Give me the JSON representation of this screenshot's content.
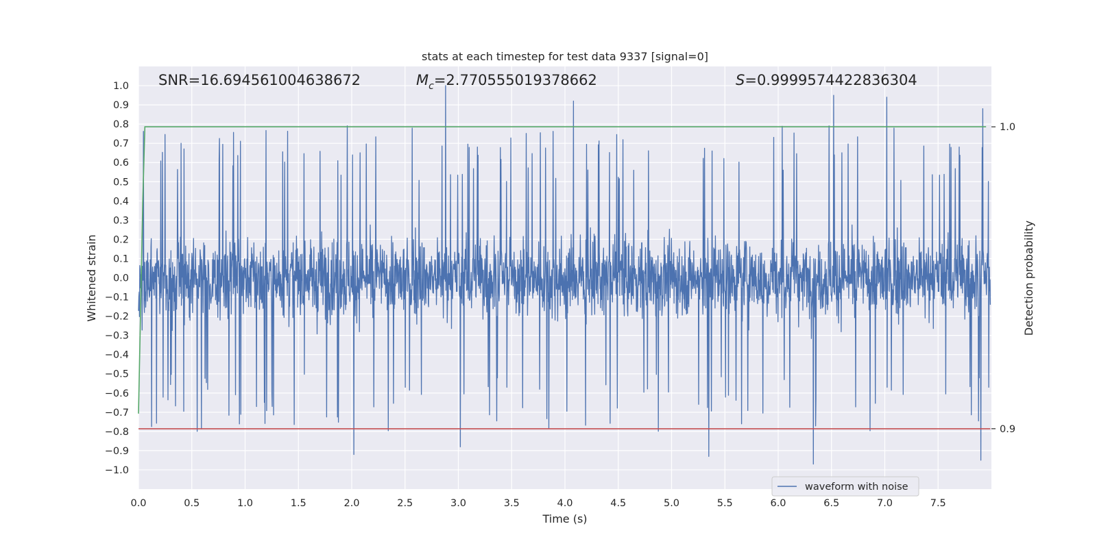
{
  "chart_data": {
    "type": "line",
    "title": "stats at each timestep for test data 9337 [signal=0]",
    "xlabel": "Time (s)",
    "ylabel": "Whitened strain",
    "ylabel_right": "Detection probability",
    "xlim": [
      0.0,
      8.0
    ],
    "ylim": [
      -1.1,
      1.1
    ],
    "ylim_right": [
      0.88,
      1.02
    ],
    "grid": true,
    "x_ticks": [
      0.0,
      0.5,
      1.0,
      1.5,
      2.0,
      2.5,
      3.0,
      3.5,
      4.0,
      4.5,
      5.0,
      5.5,
      6.0,
      6.5,
      7.0,
      7.5
    ],
    "x_tick_labels": [
      "0.0",
      "0.5",
      "1.0",
      "1.5",
      "2.0",
      "2.5",
      "3.0",
      "3.5",
      "4.0",
      "4.5",
      "5.0",
      "5.5",
      "6.0",
      "6.5",
      "7.0",
      "7.5"
    ],
    "y_ticks": [
      1.0,
      0.9,
      0.8,
      0.7,
      0.6,
      0.5,
      0.4,
      0.3,
      0.2,
      0.1,
      0.0,
      -0.1,
      -0.2,
      -0.3,
      -0.4,
      -0.5,
      -0.6,
      -0.7,
      -0.8,
      -0.9,
      -1.0
    ],
    "y_tick_labels": [
      "1.0",
      "0.9",
      "0.8",
      "0.7",
      "0.6",
      "0.5",
      "0.4",
      "0.3",
      "0.2",
      "0.1",
      "0.0",
      "−0.1",
      "−0.2",
      "−0.3",
      "−0.4",
      "−0.5",
      "−0.6",
      "−0.7",
      "−0.8",
      "−0.9",
      "−1.0"
    ],
    "y_right_ticks": [
      1.0,
      0.9
    ],
    "y_right_tick_labels": [
      "1.0",
      "0.9"
    ],
    "annotations": {
      "snr": "SNR=16.694561004638672",
      "mc_symbol": "M",
      "mc_subscript": "c",
      "mc_value": "=2.770555019378662",
      "s_symbol": "S",
      "s_value": "=0.9999574422836304"
    },
    "series": [
      {
        "name": "waveform with noise",
        "axis": "left",
        "color": "#4c72b0",
        "kind": "noise",
        "x_range": [
          0.0,
          7.99
        ],
        "typical_envelope": [
          -0.45,
          0.45
        ],
        "peaks": [
          {
            "x": 2.88,
            "y": 1.0
          },
          {
            "x": 4.08,
            "y": 0.92
          },
          {
            "x": 6.52,
            "y": 0.95
          },
          {
            "x": 7.02,
            "y": 0.94
          },
          {
            "x": 7.92,
            "y": 0.88
          },
          {
            "x": 2.02,
            "y": -0.92
          },
          {
            "x": 3.02,
            "y": -0.88
          },
          {
            "x": 5.35,
            "y": -0.93
          },
          {
            "x": 6.33,
            "y": -0.97
          },
          {
            "x": 7.9,
            "y": -0.95
          }
        ]
      },
      {
        "name": "detection probability",
        "axis": "right",
        "color": "#55a868",
        "x": [
          0.0,
          0.02,
          0.04,
          0.06,
          0.1,
          0.5,
          1.0,
          2.0,
          3.0,
          4.0,
          5.0,
          6.0,
          7.0,
          7.95
        ],
        "y": [
          0.905,
          0.94,
          0.975,
          1.0,
          1.0,
          1.0,
          1.0,
          1.0,
          1.0,
          1.0,
          1.0,
          1.0,
          1.0,
          1.0
        ]
      },
      {
        "name": "threshold",
        "axis": "right",
        "color": "#c44e52",
        "x": [
          0.0,
          7.99
        ],
        "y": [
          0.9,
          0.9
        ]
      }
    ],
    "legend": {
      "position": "lower-right",
      "entries": [
        {
          "label": "waveform with noise",
          "color": "#4c72b0"
        }
      ]
    }
  }
}
